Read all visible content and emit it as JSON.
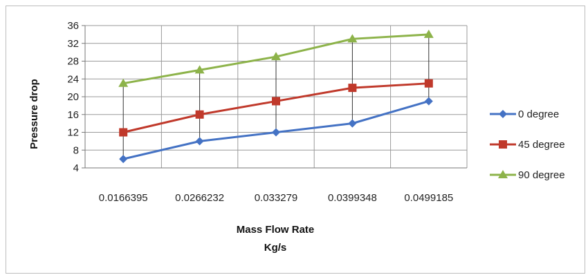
{
  "chart_data": {
    "type": "line",
    "categories": [
      "0.0166395",
      "0.0266232",
      "0.033279",
      "0.0399348",
      "0.0499185"
    ],
    "series": [
      {
        "name": "0 degree",
        "values": [
          6,
          10,
          12,
          14,
          19
        ],
        "color": "#4472c4",
        "marker": "diamond"
      },
      {
        "name": "45 degree",
        "values": [
          12,
          16,
          19,
          22,
          23
        ],
        "color": "#c0392b",
        "marker": "square"
      },
      {
        "name": "90 degree",
        "values": [
          23,
          26,
          29,
          33,
          34
        ],
        "color": "#8db34a",
        "marker": "triangle"
      }
    ],
    "title": "",
    "xlabel_line1": "Mass Flow Rate",
    "xlabel_line2": "Kg/s",
    "ylabel": "Pressure drop",
    "ylim": [
      4,
      36
    ],
    "yticks": [
      4,
      8,
      12,
      16,
      20,
      24,
      28,
      32,
      36
    ],
    "grid": true,
    "drop_lines": true,
    "legend_position": "right"
  }
}
